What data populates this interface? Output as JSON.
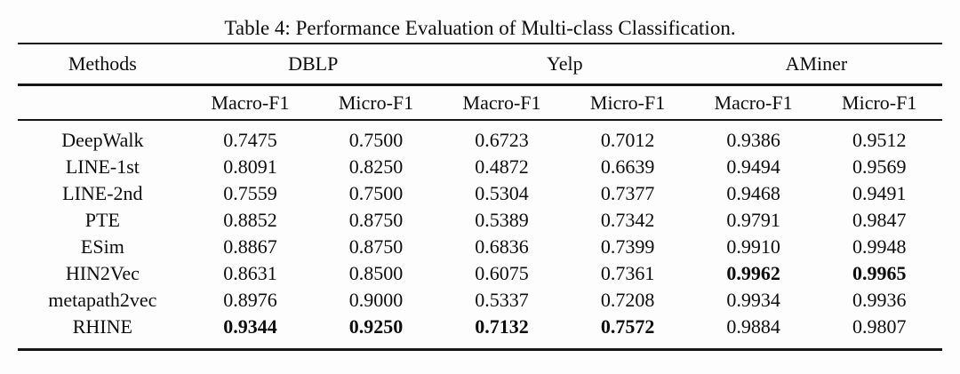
{
  "title": "Table 4: Performance Evaluation of Multi-class Classification.",
  "table": {
    "methods_header": "Methods",
    "groups": [
      {
        "label": "DBLP"
      },
      {
        "label": "Yelp"
      },
      {
        "label": "AMiner"
      }
    ],
    "subheaders": [
      "Macro-F1",
      "Micro-F1",
      "Macro-F1",
      "Micro-F1",
      "Macro-F1",
      "Micro-F1"
    ],
    "rows": [
      {
        "method": "DeepWalk",
        "values": [
          "0.7475",
          "0.7500",
          "0.6723",
          "0.7012",
          "0.9386",
          "0.9512"
        ],
        "bold": []
      },
      {
        "method": "LINE-1st",
        "values": [
          "0.8091",
          "0.8250",
          "0.4872",
          "0.6639",
          "0.9494",
          "0.9569"
        ],
        "bold": []
      },
      {
        "method": "LINE-2nd",
        "values": [
          "0.7559",
          "0.7500",
          "0.5304",
          "0.7377",
          "0.9468",
          "0.9491"
        ],
        "bold": []
      },
      {
        "method": "PTE",
        "values": [
          "0.8852",
          "0.8750",
          "0.5389",
          "0.7342",
          "0.9791",
          "0.9847"
        ],
        "bold": []
      },
      {
        "method": "ESim",
        "values": [
          "0.8867",
          "0.8750",
          "0.6836",
          "0.7399",
          "0.9910",
          "0.9948"
        ],
        "bold": []
      },
      {
        "method": "HIN2Vec",
        "values": [
          "0.8631",
          "0.8500",
          "0.6075",
          "0.7361",
          "0.9962",
          "0.9965"
        ],
        "bold": [
          4,
          5
        ]
      },
      {
        "method": "metapath2vec",
        "values": [
          "0.8976",
          "0.9000",
          "0.5337",
          "0.7208",
          "0.9934",
          "0.9936"
        ],
        "bold": []
      },
      {
        "method": "RHINE",
        "values": [
          "0.9344",
          "0.9250",
          "0.7132",
          "0.7572",
          "0.9884",
          "0.9807"
        ],
        "bold": [
          0,
          1,
          2,
          3
        ]
      }
    ]
  },
  "colors": {
    "rule": "#161616",
    "text": "#0d0d0d",
    "background": "#fdfdfd"
  }
}
